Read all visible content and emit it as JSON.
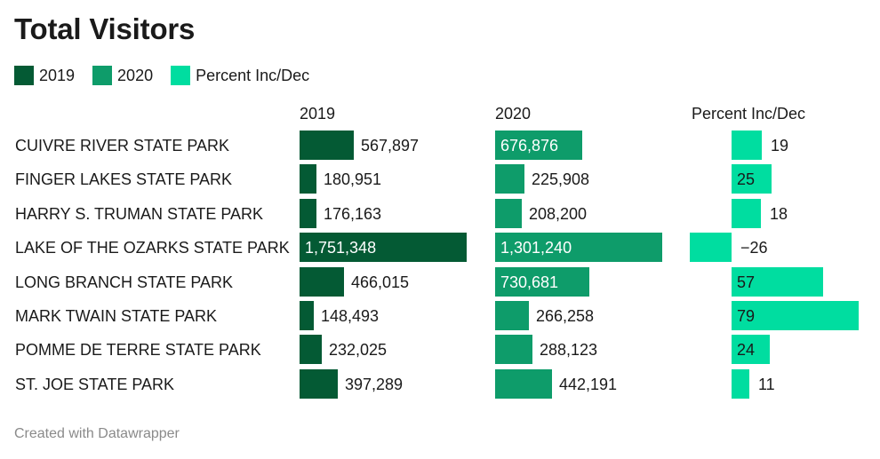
{
  "title": "Total Visitors",
  "footer": "Created with Datawrapper",
  "colors": {
    "y2019": "#045a34",
    "y2020": "#0e9c6a",
    "pct": "#00dda0"
  },
  "legend": [
    {
      "label": "2019",
      "color": "#045a34"
    },
    {
      "label": "2020",
      "color": "#0e9c6a"
    },
    {
      "label": "Percent Inc/Dec",
      "color": "#00dda0"
    }
  ],
  "chart_data": {
    "type": "bar",
    "title": "Total Visitors",
    "columns": [
      "2019",
      "2020",
      "Percent Inc/Dec"
    ],
    "categories": [
      "CUIVRE RIVER STATE PARK",
      "FINGER LAKES STATE PARK",
      "HARRY S. TRUMAN STATE PARK",
      "LAKE OF THE OZARKS STATE PARK",
      "LONG BRANCH STATE PARK",
      "MARK TWAIN STATE PARK",
      "POMME DE TERRE STATE PARK",
      "ST. JOE STATE PARK"
    ],
    "series": [
      {
        "name": "2019",
        "values": [
          567897,
          180951,
          176163,
          1751348,
          466015,
          148493,
          232025,
          397289
        ],
        "labels": [
          "567,897",
          "180,951",
          "176,163",
          "1,751,348",
          "466,015",
          "148,493",
          "232,025",
          "397,289"
        ]
      },
      {
        "name": "2020",
        "values": [
          676876,
          225908,
          208200,
          1301240,
          730681,
          266258,
          288123,
          442191
        ],
        "labels": [
          "676,876",
          "225,908",
          "208,200",
          "1,301,240",
          "730,681",
          "266,258",
          "288,123",
          "442,191"
        ]
      },
      {
        "name": "Percent Inc/Dec",
        "values": [
          19,
          25,
          18,
          -26,
          57,
          79,
          24,
          11
        ],
        "labels": [
          "19",
          "25",
          "18",
          "−26",
          "57",
          "79",
          "24",
          "11"
        ]
      }
    ]
  }
}
